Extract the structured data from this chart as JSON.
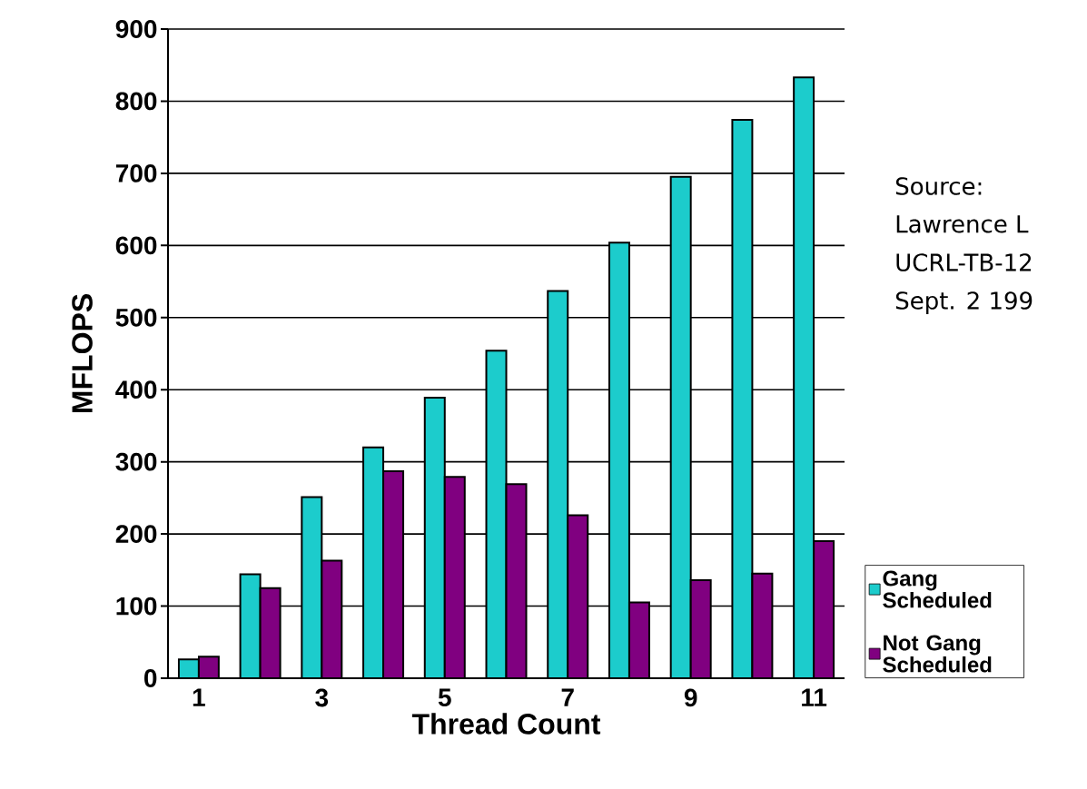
{
  "chart_data": {
    "type": "bar",
    "xlabel": "Thread Count",
    "ylabel": "MFLOPS",
    "categories": [
      "1",
      null,
      "3",
      null,
      "5",
      null,
      "7",
      null,
      "9",
      null,
      "11"
    ],
    "series": [
      {
        "name": "Gang Scheduled",
        "color": "#1ccccc",
        "values": [
          26,
          144,
          251,
          320,
          389,
          454,
          537,
          604,
          695,
          774,
          833
        ]
      },
      {
        "name": "Not Gang Scheduled",
        "color": "#800080",
        "values": [
          30,
          125,
          163,
          287,
          279,
          269,
          226,
          105,
          136,
          145,
          190
        ]
      }
    ],
    "ylim": [
      0,
      900
    ],
    "yticks": [
      0,
      100,
      200,
      300,
      400,
      500,
      600,
      700,
      800,
      900
    ],
    "grid": "y",
    "legend": "right",
    "annotations": [
      "Source:",
      "Lawrence L",
      "UCRL-TB-12",
      "Sept. 2 199"
    ]
  }
}
